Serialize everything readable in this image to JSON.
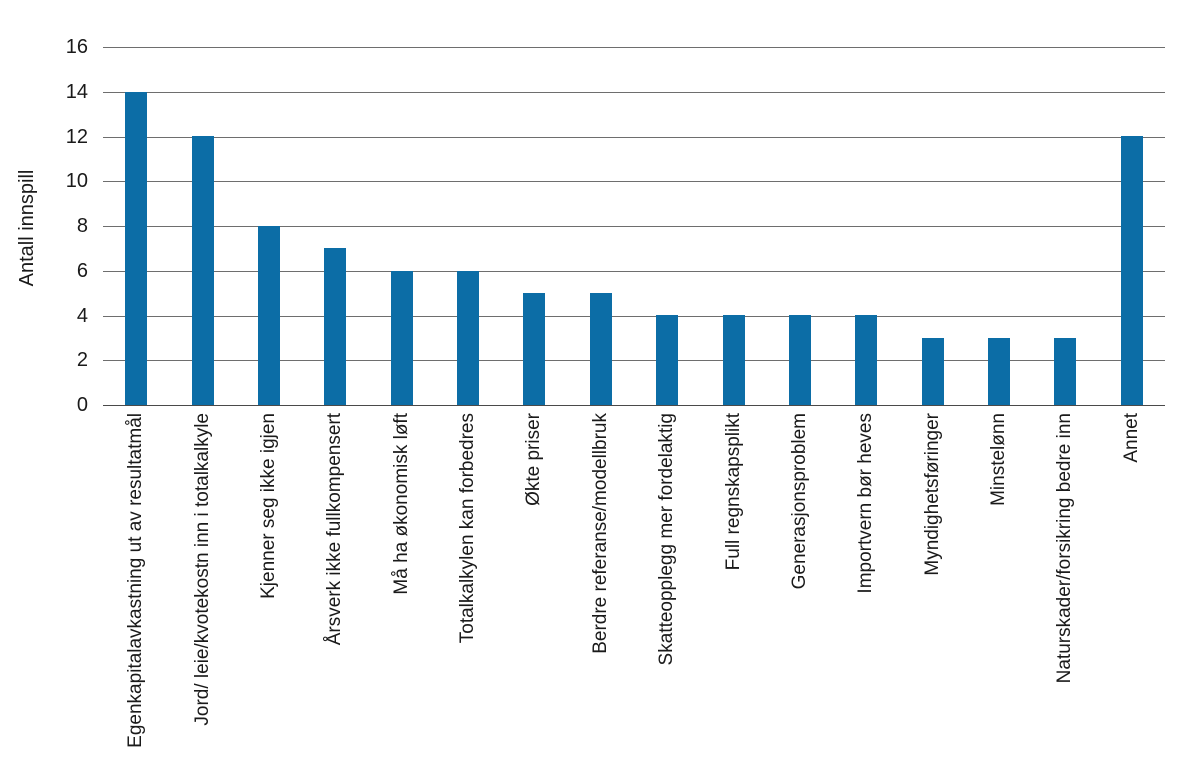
{
  "chart_data": {
    "type": "bar",
    "title": "",
    "xlabel": "",
    "ylabel": "Antall innspill",
    "categories": [
      "Egenkapitalavkastning ut av resultatmål",
      "Jord/ leie/kvotekostn inn i totalkalkyle",
      "Kjenner seg ikke igjen",
      "Årsverk ikke fullkompensert",
      "Må ha økonomisk løft",
      "Totalkalkylen kan forbedres",
      "Økte priser",
      "Berdre referanse/modellbruk",
      "Skatteopplegg mer fordelaktig",
      "Full regnskapsplikt",
      "Generasjonsproblem",
      "Importvern bør heves",
      "Myndighetsføringer",
      "Minstelønn",
      "Naturskader/forsikring bedre inn",
      "Annet"
    ],
    "values": [
      14,
      12,
      8,
      7,
      6,
      6,
      5,
      5,
      4,
      4,
      4,
      4,
      3,
      3,
      3,
      12
    ],
    "ylim": [
      0,
      16
    ],
    "ytick_step": 2,
    "grid": "horizontal",
    "legend_position": "none",
    "colors": {
      "bar": "#0c6da6",
      "gridline": "#6e6e6e",
      "baseline": "#4a4a4a",
      "axis_text": "#1a1a1a",
      "background": "#ffffff"
    }
  }
}
